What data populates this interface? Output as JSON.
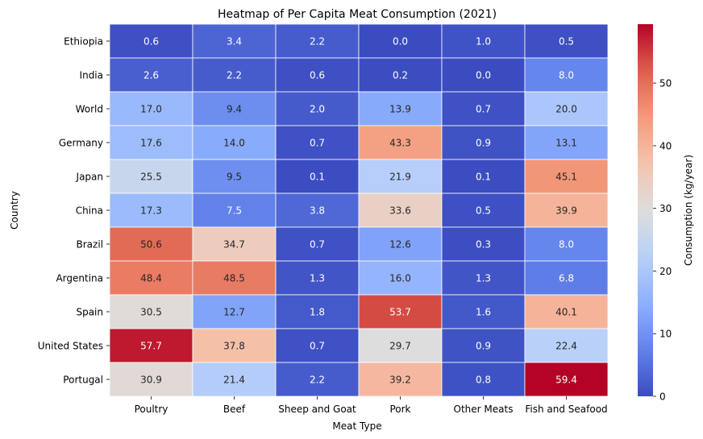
{
  "chart_data": {
    "type": "heatmap",
    "title": "Heatmap of Per Capita Meat Consumption (2021)",
    "xlabel": "Meat Type",
    "ylabel": "Country",
    "colorbar_label": "Consumption (kg/year)",
    "colormap": "coolwarm",
    "vmin": 0,
    "vmax": 59.4,
    "colorbar_ticks": [
      0,
      10,
      20,
      30,
      40,
      50
    ],
    "x_categories": [
      "Poultry",
      "Beef",
      "Sheep and Goat",
      "Pork",
      "Other Meats",
      "Fish and Seafood"
    ],
    "y_categories": [
      "Ethiopia",
      "India",
      "World",
      "Germany",
      "Japan",
      "China",
      "Brazil",
      "Argentina",
      "Spain",
      "United States",
      "Portugal"
    ],
    "values": [
      [
        0.6,
        3.4,
        2.2,
        0.0,
        1.0,
        0.5
      ],
      [
        2.6,
        2.2,
        0.6,
        0.2,
        0.0,
        8.0
      ],
      [
        17.0,
        9.4,
        2.0,
        13.9,
        0.7,
        20.0
      ],
      [
        17.6,
        14.0,
        0.7,
        43.3,
        0.9,
        13.1
      ],
      [
        25.5,
        9.5,
        0.1,
        21.9,
        0.1,
        45.1
      ],
      [
        17.3,
        7.5,
        3.8,
        33.6,
        0.5,
        39.9
      ],
      [
        50.6,
        34.7,
        0.7,
        12.6,
        0.3,
        8.0
      ],
      [
        48.4,
        48.5,
        1.3,
        16.0,
        1.3,
        6.8
      ],
      [
        30.5,
        12.7,
        1.8,
        53.7,
        1.6,
        40.1
      ],
      [
        57.7,
        37.8,
        0.7,
        29.7,
        0.9,
        22.4
      ],
      [
        30.9,
        21.4,
        2.2,
        39.2,
        0.8,
        59.4
      ]
    ]
  }
}
